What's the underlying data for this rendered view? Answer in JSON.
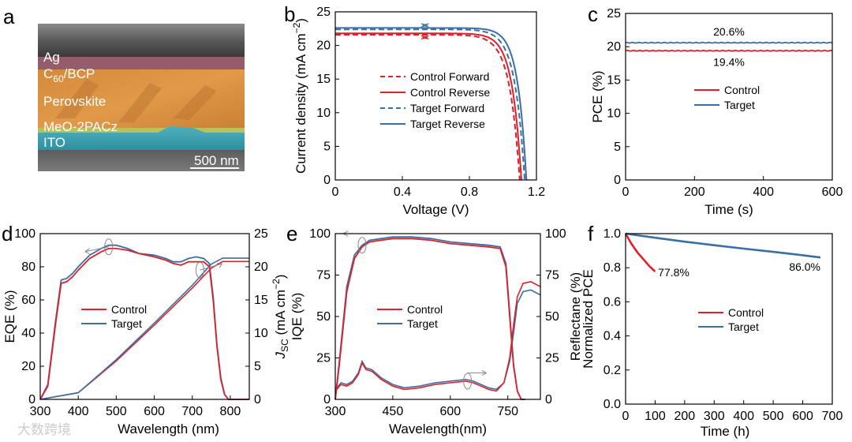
{
  "colors": {
    "control": "#e0202a",
    "target": "#3a6fa3"
  },
  "panel_labels": [
    "a",
    "b",
    "c",
    "d",
    "e",
    "f"
  ],
  "micrograph": {
    "layers": [
      "Ag",
      "C60/BCP",
      "Perovskite",
      "MeO-2PACz",
      "ITO"
    ],
    "layer_c60_main": "C",
    "layer_c60_sub": "60",
    "layer_c60_rest": "/BCP",
    "scale_bar": "500 nm"
  },
  "watermark": "大数跨境",
  "chart_data": [
    {
      "id": "b",
      "type": "line",
      "xlabel": "Voltage (V)",
      "ylabel_main": "Current density (mA cm",
      "ylabel_sup": "−2",
      "ylabel_end": ")",
      "xlim": [
        0,
        1.2
      ],
      "ylim": [
        0,
        25
      ],
      "xticks": [
        0,
        0.4,
        0.8,
        1.2
      ],
      "yticks": [
        0,
        5,
        10,
        15,
        20,
        25
      ],
      "xtick_labels": [
        "0",
        "0.4",
        "0.8",
        "1.2"
      ],
      "ytick_labels": [
        "0",
        "5",
        "10",
        "15",
        "20",
        "25"
      ],
      "legend": [
        "Control Forward",
        "Control Reverse",
        "Target Forward",
        "Target Reverse"
      ],
      "series": [
        {
          "name": "Control Forward",
          "jsc": 21.6,
          "voc": 1.1,
          "m": 0.06
        },
        {
          "name": "Control Reverse",
          "jsc": 21.8,
          "voc": 1.11,
          "m": 0.055
        },
        {
          "name": "Target Forward",
          "jsc": 22.4,
          "voc": 1.13,
          "m": 0.058
        },
        {
          "name": "Target Reverse",
          "jsc": 22.6,
          "voc": 1.14,
          "m": 0.052
        }
      ]
    },
    {
      "id": "c",
      "type": "line",
      "xlabel": "Time (s)",
      "ylabel": "PCE (%)",
      "xlim": [
        0,
        600
      ],
      "ylim": [
        0,
        25
      ],
      "xticks": [
        0,
        200,
        400,
        600
      ],
      "yticks": [
        0,
        5,
        10,
        15,
        20,
        25
      ],
      "xtick_labels": [
        "0",
        "200",
        "400",
        "600"
      ],
      "ytick_labels": [
        "0",
        "5",
        "10",
        "15",
        "20",
        "25"
      ],
      "legend": [
        "Control",
        "Target"
      ],
      "series": [
        {
          "name": "Control",
          "value": 19.4
        },
        {
          "name": "Target",
          "value": 20.6
        }
      ],
      "annotations": [
        "20.6%",
        "19.4%"
      ]
    },
    {
      "id": "d",
      "type": "line",
      "xlabel": "Wavelength (nm)",
      "ylabel_left": "EQE (%)",
      "ylabel_right_main": "J",
      "ylabel_right_sub": "SC",
      "ylabel_right_rest": " (mA cm",
      "ylabel_right_sup": "−2",
      "ylabel_right_end": ")",
      "xlim": [
        300,
        850
      ],
      "ylim_left": [
        0,
        100
      ],
      "ylim_right": [
        0,
        25
      ],
      "xticks": [
        300,
        400,
        500,
        600,
        700,
        800
      ],
      "yticks_left": [
        0,
        20,
        40,
        60,
        80,
        100
      ],
      "yticks_right": [
        0,
        5,
        10,
        15,
        20,
        25
      ],
      "xtick_labels": [
        "300",
        "400",
        "500",
        "600",
        "700",
        "800"
      ],
      "ytick_labels_left": [
        "0",
        "20",
        "40",
        "60",
        "80",
        "100"
      ],
      "ytick_labels_right": [
        "0",
        "5",
        "10",
        "15",
        "20",
        "25"
      ],
      "legend": [
        "Control",
        "Target"
      ],
      "eqe_x": [
        300,
        320,
        340,
        355,
        370,
        385,
        400,
        430,
        460,
        480,
        500,
        530,
        560,
        600,
        630,
        650,
        670,
        690,
        710,
        730,
        745,
        755,
        765,
        775,
        785,
        795,
        810,
        850
      ],
      "eqe_control": [
        0,
        8,
        45,
        70,
        71,
        74,
        78,
        85,
        89,
        91,
        91,
        90,
        88,
        86,
        84,
        82,
        81,
        83,
        83,
        83,
        80,
        60,
        32,
        12,
        3,
        0,
        0,
        0
      ],
      "eqe_target": [
        0,
        9,
        47,
        72,
        73,
        76,
        80,
        87,
        91,
        93,
        93,
        91,
        88,
        87,
        85,
        83,
        83,
        85,
        86,
        85,
        82,
        62,
        33,
        13,
        3,
        0,
        0,
        0
      ],
      "jsc_x": [
        300,
        400,
        500,
        600,
        700,
        750,
        780,
        850
      ],
      "jsc_control": [
        0,
        1,
        5.8,
        11.2,
        16.8,
        19.8,
        20.8,
        20.8
      ],
      "jsc_target": [
        0,
        1,
        6.0,
        11.5,
        17.2,
        20.4,
        21.3,
        21.3
      ]
    },
    {
      "id": "e",
      "type": "line",
      "xlabel": "Wavelength(nm)",
      "ylabel_left": "IQE (%)",
      "ylabel_right": "Reflectane (%)",
      "xlim": [
        300,
        835
      ],
      "ylim_left": [
        0,
        100
      ],
      "ylim_right": [
        0,
        100
      ],
      "xticks": [
        300,
        450,
        600,
        750
      ],
      "yticks_left": [
        0,
        25,
        50,
        75,
        100
      ],
      "yticks_right": [
        0,
        25,
        50,
        75,
        100
      ],
      "xtick_labels": [
        "300",
        "450",
        "600",
        "750"
      ],
      "ytick_labels_left": [
        "0",
        "25",
        "50",
        "75",
        "100"
      ],
      "ytick_labels_right": [
        "0",
        "25",
        "50",
        "75",
        "100"
      ],
      "legend": [
        "Control",
        "Target"
      ],
      "iqe_x": [
        300,
        310,
        330,
        350,
        370,
        390,
        420,
        450,
        500,
        550,
        600,
        650,
        700,
        730,
        745,
        755,
        765,
        775,
        785,
        795
      ],
      "iqe_control": [
        0,
        20,
        65,
        85,
        92,
        95,
        96,
        97,
        97,
        96,
        94,
        93,
        92,
        91,
        80,
        50,
        20,
        5,
        0,
        0
      ],
      "iqe_target": [
        0,
        22,
        68,
        87,
        93,
        96,
        97,
        98,
        98,
        97,
        95,
        94,
        93,
        92,
        82,
        52,
        21,
        5,
        0,
        0
      ],
      "ref_x": [
        300,
        315,
        330,
        345,
        360,
        370,
        380,
        395,
        420,
        450,
        480,
        520,
        560,
        600,
        640,
        660,
        680,
        700,
        720,
        740,
        755,
        765,
        775,
        790,
        810,
        835
      ],
      "ref_control": [
        5,
        9,
        8,
        10,
        15,
        22,
        18,
        17,
        12,
        8,
        6,
        7,
        9,
        10,
        11,
        10,
        8,
        6,
        5,
        10,
        25,
        45,
        62,
        70,
        71,
        68
      ],
      "ref_target": [
        6,
        10,
        9,
        11,
        16,
        23,
        19,
        18,
        13,
        9,
        7,
        8,
        10,
        11,
        12,
        11,
        9,
        7,
        6,
        10,
        23,
        40,
        58,
        65,
        66,
        63
      ]
    },
    {
      "id": "f",
      "type": "line",
      "xlabel": "Time (h)",
      "ylabel": "Normalized PCE",
      "xlim": [
        0,
        700
      ],
      "ylim": [
        0,
        1.0
      ],
      "xticks": [
        0,
        100,
        200,
        300,
        400,
        500,
        600,
        700
      ],
      "yticks": [
        0,
        0.2,
        0.4,
        0.6,
        0.8,
        1.0
      ],
      "xtick_labels": [
        "0",
        "100",
        "200",
        "300",
        "400",
        "500",
        "600",
        "700"
      ],
      "ytick_labels": [
        "0.0",
        "0.2",
        "0.4",
        "0.6",
        "0.8",
        "1.0"
      ],
      "legend": [
        "Control",
        "Target"
      ],
      "series": [
        {
          "name": "Control",
          "x": [
            0,
            20,
            40,
            60,
            80,
            100
          ],
          "y": [
            1.0,
            0.94,
            0.89,
            0.85,
            0.81,
            0.778
          ]
        },
        {
          "name": "Target",
          "x": [
            0,
            100,
            200,
            300,
            400,
            500,
            600,
            660
          ],
          "y": [
            1.0,
            0.976,
            0.953,
            0.932,
            0.912,
            0.893,
            0.873,
            0.86
          ]
        }
      ],
      "annotations": [
        "77.8%",
        "86.0%"
      ]
    }
  ]
}
